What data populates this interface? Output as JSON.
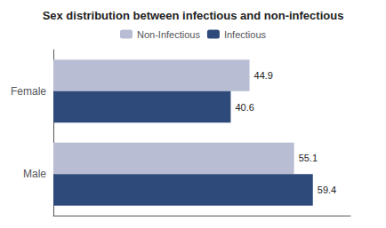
{
  "chart_data": {
    "type": "bar",
    "orientation": "horizontal",
    "title": "Sex distribution between infectious and non-infectious",
    "categories": [
      "Male",
      "Female"
    ],
    "series": [
      {
        "name": "Non-Infectious",
        "color": "#b8bdd4",
        "values": [
          55.1,
          44.9
        ]
      },
      {
        "name": "Infectious",
        "color": "#2e4a7a",
        "values": [
          59.4,
          40.6
        ]
      }
    ],
    "xlim": [
      0,
      68
    ],
    "grid": false,
    "legend": "top",
    "data_labels": true,
    "tick_labels": "y"
  }
}
